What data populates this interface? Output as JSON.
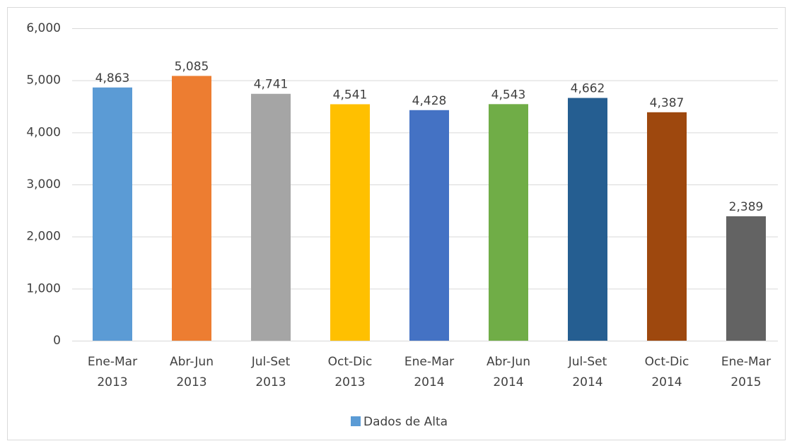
{
  "chart_data": {
    "type": "bar",
    "categories": [
      [
        "Ene-Mar",
        "2013"
      ],
      [
        "Abr-Jun",
        "2013"
      ],
      [
        "Jul-Set",
        "2013"
      ],
      [
        "Oct-Dic",
        "2013"
      ],
      [
        "Ene-Mar",
        "2014"
      ],
      [
        "Abr-Jun",
        "2014"
      ],
      [
        "Jul-Set",
        "2014"
      ],
      [
        "Oct-Dic",
        "2014"
      ],
      [
        "Ene-Mar",
        "2015"
      ]
    ],
    "series": [
      {
        "name": "Dados de Alta",
        "color": "#5b9bd5",
        "values": [
          4863,
          5085,
          4741,
          4541,
          4428,
          4543,
          4662,
          4387,
          2389
        ],
        "value_labels": [
          "4,863",
          "5,085",
          "4,741",
          "4,541",
          "4,428",
          "4,543",
          "4,662",
          "4,387",
          "2,389"
        ]
      }
    ],
    "colors": [
      "#5b9bd5",
      "#ed7d31",
      "#a5a5a5",
      "#ffc000",
      "#4472c4",
      "#70ad47",
      "#255e91",
      "#9e480e",
      "#636363"
    ],
    "ylim": [
      0,
      6000
    ],
    "yticks": [
      0,
      {
        "value": 1000,
        "label": "1,000"
      },
      {
        "value": 2000,
        "label": "2,000"
      },
      {
        "value": 3000,
        "label": "3,000"
      },
      {
        "value": 4000,
        "label": "4,000"
      },
      {
        "value": 5000,
        "label": "5,000"
      },
      {
        "value": 6000,
        "label": "6,000"
      }
    ],
    "grid": true,
    "legend": "bottom"
  }
}
